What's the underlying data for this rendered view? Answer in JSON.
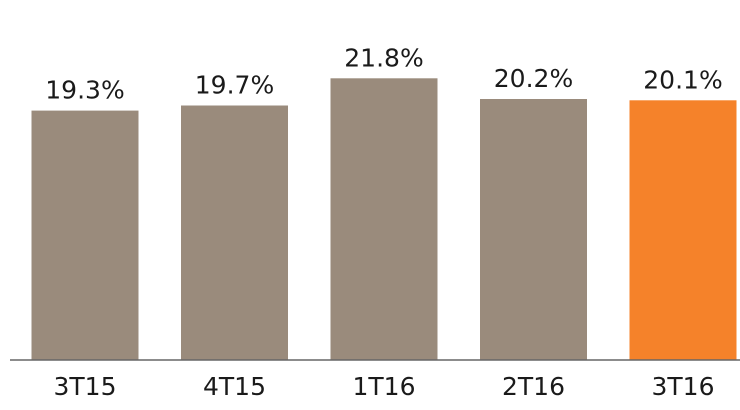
{
  "chart_data": {
    "type": "bar",
    "categories": [
      "3T15",
      "4T15",
      "1T16",
      "2T16",
      "3T16"
    ],
    "values": [
      19.3,
      19.7,
      21.8,
      20.2,
      20.1
    ],
    "data_labels": [
      "19.3%",
      "19.7%",
      "21.8%",
      "20.2%",
      "20.1%"
    ],
    "title": "",
    "xlabel": "",
    "ylabel": "",
    "unit": "%",
    "grid": false,
    "legend": "none",
    "highlight_index": 4,
    "colors": {
      "bar": "#9a8b7c",
      "highlight": "#f5822a",
      "axis": "#666666",
      "text": "#1a1a1a"
    }
  }
}
